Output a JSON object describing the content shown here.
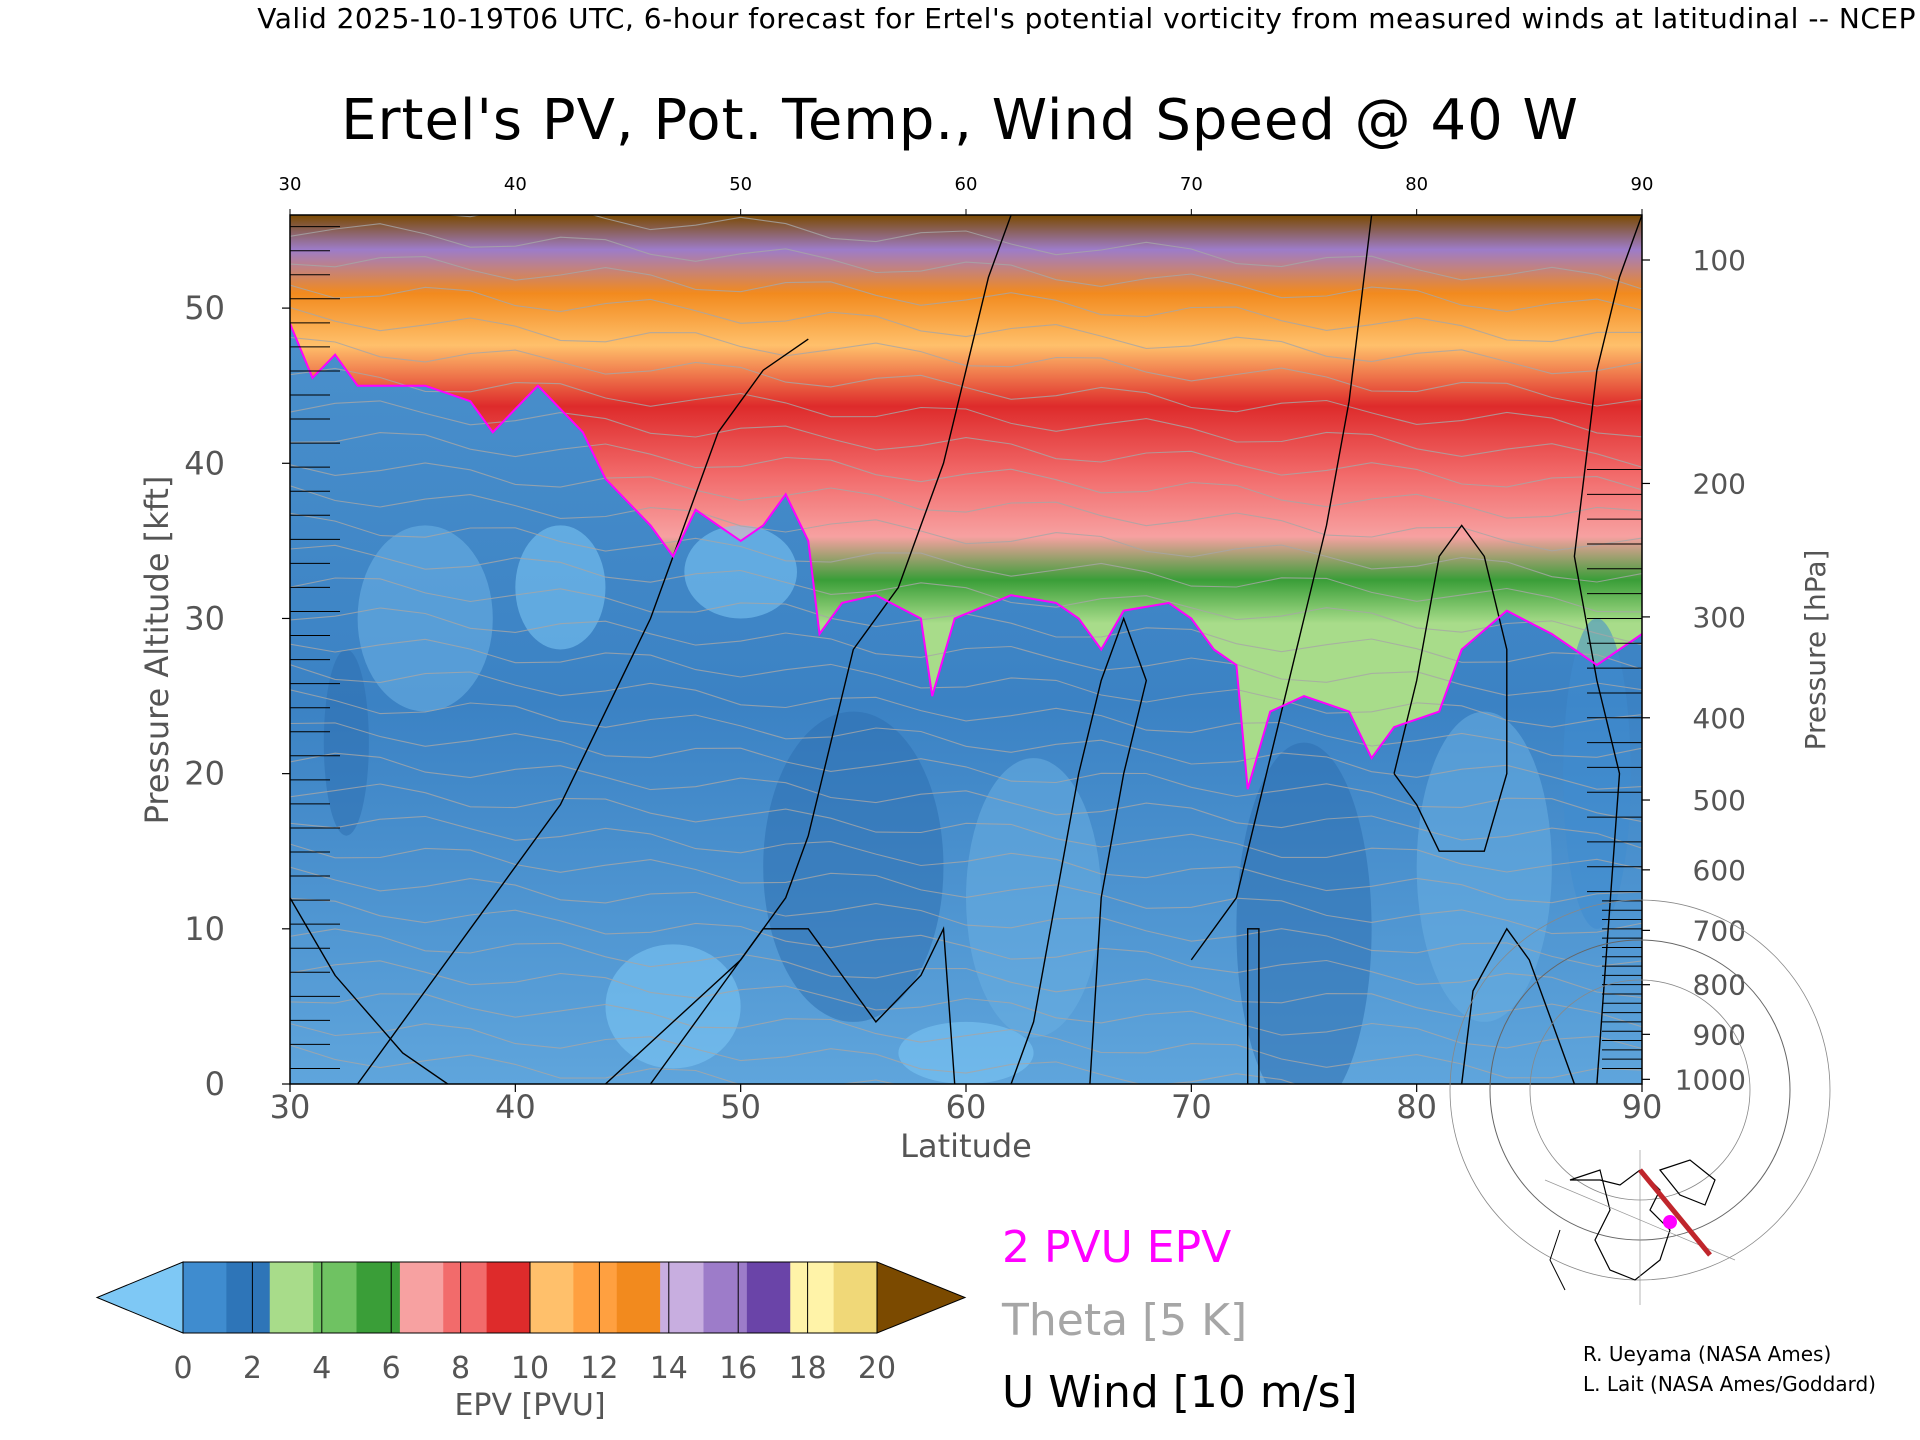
{
  "header": {
    "text": "Valid 2025-10-19T06 UTC, 6-hour forecast for Ertel's potential vorticity from measured winds at latitudinal -- NCEP"
  },
  "chart_data": {
    "type": "heatmap",
    "title": "Ertel's PV, Pot. Temp., Wind Speed @ 40 W",
    "xlabel": "Latitude",
    "ylabel": "Pressure Altitude [kft]",
    "y2label": "Pressure [hPa]",
    "xlim": [
      30,
      90
    ],
    "ylim": [
      0,
      56
    ],
    "x_ticks": [
      30,
      40,
      50,
      60,
      70,
      80,
      90
    ],
    "y_ticks": [
      0,
      10,
      20,
      30,
      40,
      50
    ],
    "pressure_ticks": [
      {
        "hPa": 100,
        "kft": 53.1
      },
      {
        "hPa": 200,
        "kft": 38.7
      },
      {
        "hPa": 300,
        "kft": 30.1
      },
      {
        "hPa": 400,
        "kft": 23.6
      },
      {
        "hPa": 500,
        "kft": 18.3
      },
      {
        "hPa": 600,
        "kft": 13.8
      },
      {
        "hPa": 700,
        "kft": 9.9
      },
      {
        "hPa": 800,
        "kft": 6.4
      },
      {
        "hPa": 900,
        "kft": 3.2
      },
      {
        "hPa": 1000,
        "kft": 0.3
      }
    ],
    "colorbar": {
      "label": "EPV [PVU]",
      "ticks": [
        0,
        2,
        4,
        6,
        8,
        10,
        12,
        14,
        16,
        18,
        20
      ],
      "colors": [
        "#7ec8f5",
        "#3f8ccf",
        "#2e75b8",
        "#a8dc8a",
        "#6fc262",
        "#3a9e38",
        "#f7a1a1",
        "#f26b6b",
        "#de2b2b",
        "#ffc06b",
        "#ffa040",
        "#f28a1e",
        "#c8aee0",
        "#9d7cc9",
        "#6a44a8",
        "#fff3a8",
        "#f0d878",
        "#7b4a00"
      ]
    },
    "tropopause_2pvu": [
      {
        "lat": 30,
        "kft": 49
      },
      {
        "lat": 31,
        "kft": 45.5
      },
      {
        "lat": 32,
        "kft": 47
      },
      {
        "lat": 33,
        "kft": 45
      },
      {
        "lat": 36,
        "kft": 45
      },
      {
        "lat": 38,
        "kft": 44
      },
      {
        "lat": 39,
        "kft": 42
      },
      {
        "lat": 41,
        "kft": 45
      },
      {
        "lat": 43,
        "kft": 42
      },
      {
        "lat": 44,
        "kft": 39
      },
      {
        "lat": 46,
        "kft": 36
      },
      {
        "lat": 47,
        "kft": 34
      },
      {
        "lat": 48,
        "kft": 37
      },
      {
        "lat": 49,
        "kft": 36
      },
      {
        "lat": 50,
        "kft": 35
      },
      {
        "lat": 51,
        "kft": 36
      },
      {
        "lat": 52,
        "kft": 38
      },
      {
        "lat": 53,
        "kft": 35
      },
      {
        "lat": 53.5,
        "kft": 29
      },
      {
        "lat": 54.5,
        "kft": 31
      },
      {
        "lat": 56,
        "kft": 31.5
      },
      {
        "lat": 58,
        "kft": 30
      },
      {
        "lat": 58.5,
        "kft": 25
      },
      {
        "lat": 59.5,
        "kft": 30
      },
      {
        "lat": 62,
        "kft": 31.5
      },
      {
        "lat": 64,
        "kft": 31
      },
      {
        "lat": 65,
        "kft": 30
      },
      {
        "lat": 66,
        "kft": 28
      },
      {
        "lat": 67,
        "kft": 30.5
      },
      {
        "lat": 69,
        "kft": 31
      },
      {
        "lat": 70,
        "kft": 30
      },
      {
        "lat": 71,
        "kft": 28
      },
      {
        "lat": 72,
        "kft": 27
      },
      {
        "lat": 72.5,
        "kft": 19
      },
      {
        "lat": 73.5,
        "kft": 24
      },
      {
        "lat": 75,
        "kft": 25
      },
      {
        "lat": 77,
        "kft": 24
      },
      {
        "lat": 78,
        "kft": 21
      },
      {
        "lat": 79,
        "kft": 23
      },
      {
        "lat": 81,
        "kft": 24
      },
      {
        "lat": 82,
        "kft": 28
      },
      {
        "lat": 84,
        "kft": 30.5
      },
      {
        "lat": 86,
        "kft": 29
      },
      {
        "lat": 88,
        "kft": 27
      },
      {
        "lat": 90,
        "kft": 29
      }
    ],
    "series": [
      {
        "name": "2 PVU EPV",
        "color": "#ff00ff"
      },
      {
        "name": "Theta [5 K]",
        "color": "#a6a6a6"
      },
      {
        "name": "U Wind [10 m/s]",
        "color": "#000000"
      }
    ]
  },
  "credits": [
    "R. Ueyama (NASA Ames)",
    "L. Lait (NASA Ames/Goddard)"
  ]
}
